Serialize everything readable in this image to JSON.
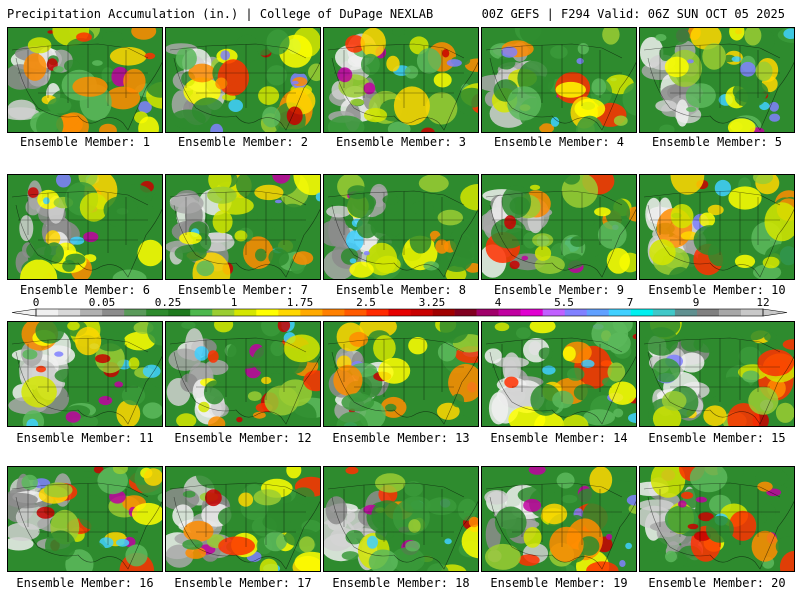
{
  "header": {
    "title": "Precipitation Accumulation (in.) | College of DuPage NEXLAB",
    "run_info": "00Z GEFS | F294 Valid: 06Z SUN OCT 05 2025"
  },
  "members": [
    {
      "label": "Ensemble Member: 1"
    },
    {
      "label": "Ensemble Member: 2"
    },
    {
      "label": "Ensemble Member: 3"
    },
    {
      "label": "Ensemble Member: 4"
    },
    {
      "label": "Ensemble Member: 5"
    },
    {
      "label": "Ensemble Member: 6"
    },
    {
      "label": "Ensemble Member: 7"
    },
    {
      "label": "Ensemble Member: 8"
    },
    {
      "label": "Ensemble Member: 9"
    },
    {
      "label": "Ensemble Member: 10"
    },
    {
      "label": "Ensemble Member: 11"
    },
    {
      "label": "Ensemble Member: 12"
    },
    {
      "label": "Ensemble Member: 13"
    },
    {
      "label": "Ensemble Member: 14"
    },
    {
      "label": "Ensemble Member: 15"
    },
    {
      "label": "Ensemble Member: 16"
    },
    {
      "label": "Ensemble Member: 17"
    },
    {
      "label": "Ensemble Member: 18"
    },
    {
      "label": "Ensemble Member: 19"
    },
    {
      "label": "Ensemble Member: 20"
    }
  ],
  "colorbar": {
    "tick_labels": [
      "0",
      "0.05",
      "0.25",
      "1",
      "1.75",
      "2.5",
      "3.25",
      "4",
      "5.5",
      "7",
      "9",
      "12"
    ],
    "colors": [
      "#f0f0f0",
      "#d8d8d8",
      "#b0b0b0",
      "#8c8c8c",
      "#5a9a5a",
      "#2e8b2e",
      "#1e7a1e",
      "#4db84d",
      "#9acd32",
      "#d4e600",
      "#ffff00",
      "#ffd700",
      "#ffaa00",
      "#ff8000",
      "#ff5a00",
      "#ff2a00",
      "#e60000",
      "#c80000",
      "#a00000",
      "#800020",
      "#a0006a",
      "#c000a0",
      "#e000d0",
      "#c060ff",
      "#8080ff",
      "#60a0ff",
      "#40d0ff",
      "#00f0f0",
      "#40c8c8",
      "#609090",
      "#808080",
      "#a8a8a8",
      "#c8c8c8"
    ]
  }
}
